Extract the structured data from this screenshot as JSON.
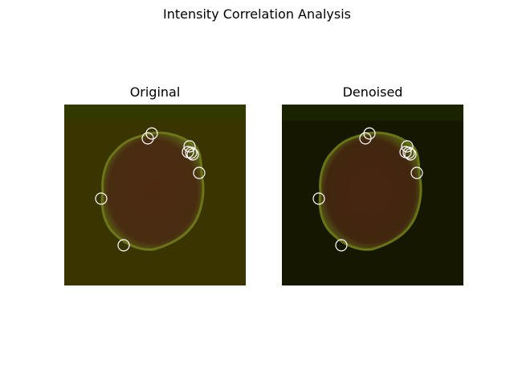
{
  "figure": {
    "title": "Intensity Correlation Analysis"
  },
  "panels": [
    {
      "title": "Original",
      "background": "#3a3500",
      "cell_color": "#4d2a14",
      "edge_color": "#6f7a1a"
    },
    {
      "title": "Denoised",
      "background": "#161700",
      "cell_color": "#4a2612",
      "edge_color": "#6c7a18"
    }
  ],
  "marker_color": "#ffffff"
}
